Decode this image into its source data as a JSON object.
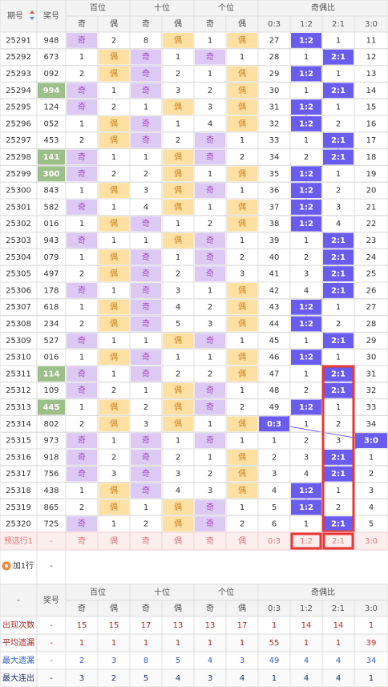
{
  "header": {
    "period": "期号",
    "number": "奖号",
    "groups": [
      "百位",
      "十位",
      "个位",
      "奇偶比"
    ],
    "subs": [
      "奇",
      "偶",
      "奇",
      "偶",
      "奇",
      "偶",
      "0:3",
      "1:2",
      "2:1",
      "3:0"
    ]
  },
  "rows": [
    {
      "period": "25291",
      "number": "948",
      "cells": [
        "奇",
        2,
        8,
        "偶",
        1,
        "偶",
        27,
        "1:2",
        1,
        11
      ]
    },
    {
      "period": "25292",
      "number": "673",
      "cells": [
        1,
        "偶",
        "奇",
        1,
        "奇",
        1,
        28,
        1,
        "2:1",
        12
      ]
    },
    {
      "period": "25293",
      "number": "092",
      "cells": [
        2,
        "偶",
        "奇",
        2,
        1,
        "偶",
        29,
        "1:2",
        1,
        13
      ]
    },
    {
      "period": "25294",
      "number": "994",
      "highlight": true,
      "cells": [
        "奇",
        1,
        "奇",
        3,
        2,
        "偶",
        30,
        1,
        "2:1",
        14
      ]
    },
    {
      "period": "25295",
      "number": "124",
      "cells": [
        "奇",
        2,
        1,
        "偶",
        3,
        "偶",
        31,
        "1:2",
        1,
        15
      ]
    },
    {
      "period": "25296",
      "number": "052",
      "cells": [
        1,
        "偶",
        "奇",
        1,
        4,
        "偶",
        32,
        "1:2",
        2,
        16
      ]
    },
    {
      "period": "25297",
      "number": "453",
      "cells": [
        2,
        "偶",
        "奇",
        2,
        "奇",
        1,
        33,
        1,
        "2:1",
        17
      ]
    },
    {
      "period": "25298",
      "number": "141",
      "highlight": true,
      "cells": [
        "奇",
        1,
        1,
        "偶",
        "奇",
        2,
        34,
        2,
        "2:1",
        18
      ]
    },
    {
      "period": "25299",
      "number": "300",
      "highlight": true,
      "cells": [
        "奇",
        2,
        2,
        "偶",
        1,
        "偶",
        35,
        "1:2",
        1,
        19
      ]
    },
    {
      "period": "25300",
      "number": "843",
      "cells": [
        1,
        "偶",
        3,
        "偶",
        "奇",
        1,
        36,
        "1:2",
        2,
        20
      ]
    },
    {
      "period": "25301",
      "number": "582",
      "cells": [
        "奇",
        1,
        4,
        "偶",
        1,
        "偶",
        37,
        "1:2",
        3,
        21
      ]
    },
    {
      "period": "25302",
      "number": "016",
      "cells": [
        1,
        "偶",
        "奇",
        1,
        2,
        "偶",
        38,
        "1:2",
        4,
        22
      ]
    },
    {
      "period": "25303",
      "number": "943",
      "cells": [
        "奇",
        1,
        1,
        "偶",
        "奇",
        1,
        39,
        1,
        "2:1",
        23
      ]
    },
    {
      "period": "25304",
      "number": "079",
      "cells": [
        1,
        "偶",
        "奇",
        1,
        "奇",
        2,
        40,
        2,
        "2:1",
        24
      ]
    },
    {
      "period": "25305",
      "number": "497",
      "cells": [
        2,
        "偶",
        "奇",
        2,
        "奇",
        3,
        41,
        3,
        "2:1",
        25
      ]
    },
    {
      "period": "25306",
      "number": "178",
      "cells": [
        "奇",
        1,
        "奇",
        3,
        1,
        "偶",
        42,
        4,
        "2:1",
        26
      ]
    },
    {
      "period": "25307",
      "number": "618",
      "cells": [
        1,
        "偶",
        "奇",
        4,
        2,
        "偶",
        43,
        "1:2",
        1,
        27
      ]
    },
    {
      "period": "25308",
      "number": "234",
      "cells": [
        2,
        "偶",
        "奇",
        5,
        3,
        "偶",
        44,
        "1:2",
        2,
        28
      ]
    },
    {
      "period": "25309",
      "number": "527",
      "cells": [
        "奇",
        1,
        1,
        "偶",
        "奇",
        1,
        45,
        1,
        "2:1",
        29
      ]
    },
    {
      "period": "25310",
      "number": "016",
      "cells": [
        1,
        "偶",
        "奇",
        1,
        1,
        "偶",
        46,
        "1:2",
        1,
        30
      ]
    },
    {
      "period": "25311",
      "number": "114",
      "highlight": true,
      "cells": [
        "奇",
        1,
        "奇",
        2,
        2,
        "偶",
        47,
        1,
        "2:1",
        31
      ]
    },
    {
      "period": "25312",
      "number": "109",
      "cells": [
        "奇",
        2,
        1,
        "偶",
        "奇",
        1,
        48,
        2,
        "2:1",
        32
      ]
    },
    {
      "period": "25313",
      "number": "445",
      "highlight": true,
      "cells": [
        1,
        "偶",
        2,
        "偶",
        "奇",
        2,
        49,
        "1:2",
        1,
        33
      ]
    },
    {
      "period": "25314",
      "number": "802",
      "cells": [
        2,
        "偶",
        3,
        "偶",
        1,
        "偶",
        "0:3",
        1,
        2,
        34
      ]
    },
    {
      "period": "25315",
      "number": "973",
      "cells": [
        "奇",
        1,
        "奇",
        1,
        "奇",
        1,
        1,
        2,
        3,
        "3:0"
      ]
    },
    {
      "period": "25316",
      "number": "918",
      "cells": [
        "奇",
        2,
        "奇",
        2,
        1,
        "偶",
        2,
        3,
        "2:1",
        1
      ]
    },
    {
      "period": "25317",
      "number": "756",
      "cells": [
        "奇",
        3,
        "奇",
        3,
        2,
        "偶",
        3,
        4,
        "2:1",
        2
      ]
    },
    {
      "period": "25318",
      "number": "438",
      "cells": [
        1,
        "偶",
        "奇",
        4,
        3,
        "偶",
        4,
        "1:2",
        1,
        3
      ]
    },
    {
      "period": "25319",
      "number": "865",
      "cells": [
        2,
        "偶",
        1,
        "偶",
        "奇",
        1,
        5,
        "1:2",
        2,
        4
      ]
    },
    {
      "period": "25320",
      "number": "725",
      "cells": [
        "奇",
        1,
        2,
        "偶",
        "奇",
        2,
        6,
        1,
        "2:1",
        5
      ]
    }
  ],
  "preselect": {
    "label": "预选行1",
    "number": "-",
    "cells": [
      "奇",
      "偶",
      "奇",
      "偶",
      "奇",
      "偶",
      "0:3",
      "1:2",
      "2:1",
      "3:0"
    ]
  },
  "add_row": {
    "label": "加1行",
    "number": "-"
  },
  "footer_header": {
    "period": "-",
    "number": "奖号",
    "groups": [
      "百位",
      "十位",
      "个位",
      "奇偶比"
    ],
    "subs": [
      "奇",
      "偶",
      "奇",
      "偶",
      "奇",
      "偶",
      "0:3",
      "1:2",
      "2:1",
      "3:0"
    ]
  },
  "stats": [
    {
      "label": "出现次数",
      "number": "-",
      "values": [
        15,
        15,
        17,
        13,
        13,
        17,
        1,
        14,
        14,
        1
      ]
    },
    {
      "label": "平均遗漏",
      "number": "-",
      "values": [
        1,
        1,
        1,
        1,
        1,
        1,
        55,
        1,
        1,
        39
      ]
    },
    {
      "label": "最大遗漏",
      "number": "-",
      "values": [
        2,
        3,
        8,
        5,
        4,
        3,
        49,
        4,
        4,
        34
      ]
    },
    {
      "label": "最大连出",
      "number": "-",
      "values": [
        3,
        2,
        5,
        4,
        3,
        4,
        1,
        4,
        4,
        1
      ]
    }
  ]
}
